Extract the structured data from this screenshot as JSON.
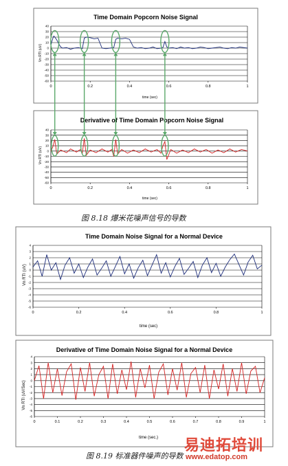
{
  "figure_8_18": {
    "caption": "图 8.18 爆米花噪声信号的导数",
    "top_chart": {
      "title": "Time Domain Popcorn Noise Signal",
      "xlabel": "time (sec)",
      "ylabel": "Vn RTI (uV)",
      "x_ticks": [
        "0",
        "0.2",
        "0.4",
        "0.6",
        "0.8",
        "1"
      ],
      "y_ticks": [
        "40",
        "30",
        "20",
        "10",
        "0",
        "-10",
        "-20",
        "-30",
        "-40",
        "-50",
        "-60"
      ]
    },
    "bottom_chart": {
      "title": "Derivative of Time Domain Popcorn Noise Signal",
      "xlabel": "time (sec)",
      "ylabel": "Vn RTI (uV)",
      "x_ticks": [
        "0",
        "0.2",
        "0.4",
        "0.6",
        "0.8",
        "1"
      ],
      "y_ticks": [
        "40",
        "30",
        "20",
        "10",
        "0",
        "-10",
        "-20",
        "-30",
        "-40",
        "-50",
        "-60"
      ]
    }
  },
  "figure_8_19": {
    "caption": "图 8.19 标准器件噪声的导数",
    "top_chart": {
      "title": "Time Domain Noise Signal for a Normal Device",
      "xlabel": "time (sec)",
      "ylabel": "Vn RTI (uV)",
      "x_ticks": [
        "0",
        "0.2",
        "0.4",
        "0.6",
        "0.8",
        "1"
      ],
      "y_ticks": [
        "4",
        "3",
        "2",
        "1",
        "0",
        "-1",
        "-2",
        "-3",
        "-4",
        "-5",
        "-6"
      ]
    },
    "bottom_chart": {
      "title": "Derivative of Time Domain Noise Signal for a Normal Device",
      "xlabel": "time (sec.)",
      "ylabel": "Vn RTI (uV/Sec)",
      "x_ticks": [
        "0",
        "0.1",
        "0.2",
        "0.3",
        "0.4",
        "0.5",
        "0.6",
        "0.7",
        "0.8",
        "0.9",
        "1"
      ],
      "y_ticks": [
        "4",
        "3",
        "2",
        "1",
        "0",
        "-1",
        "-2",
        "-3",
        "-4",
        "-5",
        "-6"
      ]
    }
  },
  "watermark": {
    "text": "易迪拓培训",
    "url": "www.edatop.com"
  },
  "colors": {
    "signal": "#1a2a78",
    "derivative": "#d42020",
    "marker": "#5aa86a",
    "grid": "#000000",
    "watermark_main": "#e04a3a",
    "watermark_url": "#d03a2a"
  },
  "chart_data": [
    {
      "type": "line",
      "title": "Time Domain Popcorn Noise Signal",
      "xlabel": "time (sec)",
      "ylabel": "Vn RTI (uV)",
      "xlim": [
        0,
        1
      ],
      "ylim": [
        -60,
        40
      ],
      "grid": true,
      "markers": "green ellipses at popcorn transitions near x = 0.02, 0.17, 0.33, 0.58",
      "series": [
        {
          "x": [
            0,
            0.005,
            0.01,
            0.015,
            0.02,
            0.03,
            0.04,
            0.05,
            0.06,
            0.08,
            0.1,
            0.12,
            0.14,
            0.16,
            0.17,
            0.18,
            0.2,
            0.22,
            0.24,
            0.26,
            0.28,
            0.3,
            0.32,
            0.33,
            0.34,
            0.36,
            0.38,
            0.4,
            0.42,
            0.44,
            0.46,
            0.48,
            0.5,
            0.52,
            0.54,
            0.56,
            0.57,
            0.58,
            0.59,
            0.6,
            0.62,
            0.64,
            0.66,
            0.68,
            0.7,
            0.72,
            0.74,
            0.76,
            0.78,
            0.8,
            0.82,
            0.84,
            0.86,
            0.88,
            0.9,
            0.92,
            0.94,
            0.96,
            0.98,
            1.0
          ],
          "values": [
            5,
            12,
            18,
            22,
            20,
            15,
            8,
            2,
            0,
            1,
            -2,
            0,
            1,
            -1,
            18,
            20,
            19,
            17,
            18,
            0,
            -1,
            0,
            1,
            16,
            18,
            17,
            18,
            16,
            2,
            0,
            1,
            -1,
            0,
            2,
            -1,
            0,
            1,
            12,
            2,
            0,
            1,
            -1,
            2,
            0,
            1,
            -1,
            0,
            2,
            1,
            -1,
            0,
            1,
            2,
            0,
            -1,
            1,
            0,
            2,
            1,
            0
          ]
        }
      ]
    },
    {
      "type": "line",
      "title": "Derivative of Time Domain Popcorn Noise Signal",
      "xlabel": "time (sec)",
      "ylabel": "Vn RTI (uV)",
      "xlim": [
        0,
        1
      ],
      "ylim": [
        -60,
        40
      ],
      "grid": true,
      "markers": "green ellipses at spikes near x = 0.02, 0.17, 0.33, 0.58",
      "series": [
        {
          "x": [
            0,
            0.01,
            0.02,
            0.03,
            0.05,
            0.08,
            0.1,
            0.13,
            0.15,
            0.16,
            0.17,
            0.18,
            0.2,
            0.23,
            0.26,
            0.29,
            0.31,
            0.32,
            0.33,
            0.34,
            0.36,
            0.39,
            0.42,
            0.45,
            0.48,
            0.51,
            0.54,
            0.56,
            0.57,
            0.58,
            0.59,
            0.61,
            0.64,
            0.67,
            0.7,
            0.73,
            0.76,
            0.79,
            0.82,
            0.85,
            0.88,
            0.91,
            0.94,
            0.97,
            1.0
          ],
          "values": [
            0,
            8,
            22,
            -6,
            2,
            -3,
            4,
            -2,
            3,
            -4,
            24,
            -8,
            2,
            -3,
            4,
            -2,
            3,
            -10,
            22,
            -6,
            3,
            -4,
            2,
            -3,
            4,
            -2,
            3,
            -4,
            10,
            18,
            -16,
            3,
            -4,
            2,
            -3,
            4,
            -2,
            3,
            -4,
            2,
            -3,
            4,
            -2,
            3,
            0
          ]
        }
      ]
    },
    {
      "type": "line",
      "title": "Time Domain Noise Signal for a Normal Device",
      "xlabel": "time (sec)",
      "ylabel": "Vn RTI (uV)",
      "xlim": [
        0,
        1
      ],
      "ylim": [
        -6,
        4
      ],
      "grid": true,
      "series": [
        {
          "x": [
            0,
            0.02,
            0.04,
            0.06,
            0.08,
            0.1,
            0.12,
            0.14,
            0.16,
            0.18,
            0.2,
            0.22,
            0.24,
            0.26,
            0.28,
            0.3,
            0.32,
            0.34,
            0.36,
            0.38,
            0.4,
            0.42,
            0.44,
            0.46,
            0.48,
            0.5,
            0.52,
            0.54,
            0.56,
            0.58,
            0.6,
            0.62,
            0.64,
            0.66,
            0.68,
            0.7,
            0.72,
            0.74,
            0.76,
            0.78,
            0.8,
            0.82,
            0.84,
            0.86,
            0.88,
            0.9,
            0.92,
            0.94,
            0.96,
            0.98,
            1.0
          ],
          "values": [
            0.5,
            1.5,
            -1.0,
            2.5,
            0.0,
            1.2,
            -1.5,
            0.8,
            2.0,
            -0.5,
            1.0,
            -1.2,
            0.5,
            1.8,
            -0.8,
            0.3,
            1.5,
            -1.0,
            0.6,
            2.2,
            -0.6,
            1.0,
            -1.3,
            0.4,
            1.6,
            -0.9,
            0.8,
            2.5,
            -0.5,
            1.2,
            -1.1,
            0.6,
            1.9,
            -0.7,
            0.3,
            1.4,
            -1.2,
            0.8,
            2.0,
            -0.4,
            1.1,
            -1.0,
            0.5,
            1.7,
            2.6,
            0.9,
            -0.8,
            1.3,
            2.4,
            0.2,
            0.8
          ]
        }
      ]
    },
    {
      "type": "line",
      "title": "Derivative of Time Domain Noise Signal for a Normal Device",
      "xlabel": "time (sec.)",
      "ylabel": "Vn RTI (uV/Sec)",
      "xlim": [
        0,
        1
      ],
      "ylim": [
        -6,
        4
      ],
      "grid": true,
      "series": [
        {
          "x": [
            0,
            0.02,
            0.04,
            0.06,
            0.08,
            0.1,
            0.12,
            0.14,
            0.16,
            0.18,
            0.2,
            0.22,
            0.24,
            0.26,
            0.28,
            0.3,
            0.32,
            0.34,
            0.36,
            0.38,
            0.4,
            0.42,
            0.44,
            0.46,
            0.48,
            0.5,
            0.52,
            0.54,
            0.56,
            0.58,
            0.6,
            0.62,
            0.64,
            0.66,
            0.68,
            0.7,
            0.72,
            0.74,
            0.76,
            0.78,
            0.8,
            0.82,
            0.84,
            0.86,
            0.88,
            0.9,
            0.92,
            0.94,
            0.96,
            0.98,
            1.0
          ],
          "values": [
            0,
            2.5,
            -3.0,
            3.0,
            -2.0,
            2.0,
            -2.5,
            1.5,
            2.8,
            -3.2,
            2.2,
            -1.8,
            3.0,
            -2.6,
            1.0,
            2.4,
            -3.0,
            2.8,
            -2.2,
            1.8,
            -1.5,
            3.2,
            -2.8,
            2.0,
            -1.2,
            2.6,
            -3.0,
            1.4,
            2.8,
            -2.4,
            2.0,
            -1.6,
            3.0,
            -2.8,
            1.2,
            2.2,
            -2.0,
            2.6,
            -3.0,
            1.8,
            -1.4,
            2.8,
            -2.6,
            2.0,
            -1.8,
            3.0,
            -2.2,
            1.6,
            2.4,
            -2.0,
            0.5
          ]
        }
      ]
    }
  ]
}
